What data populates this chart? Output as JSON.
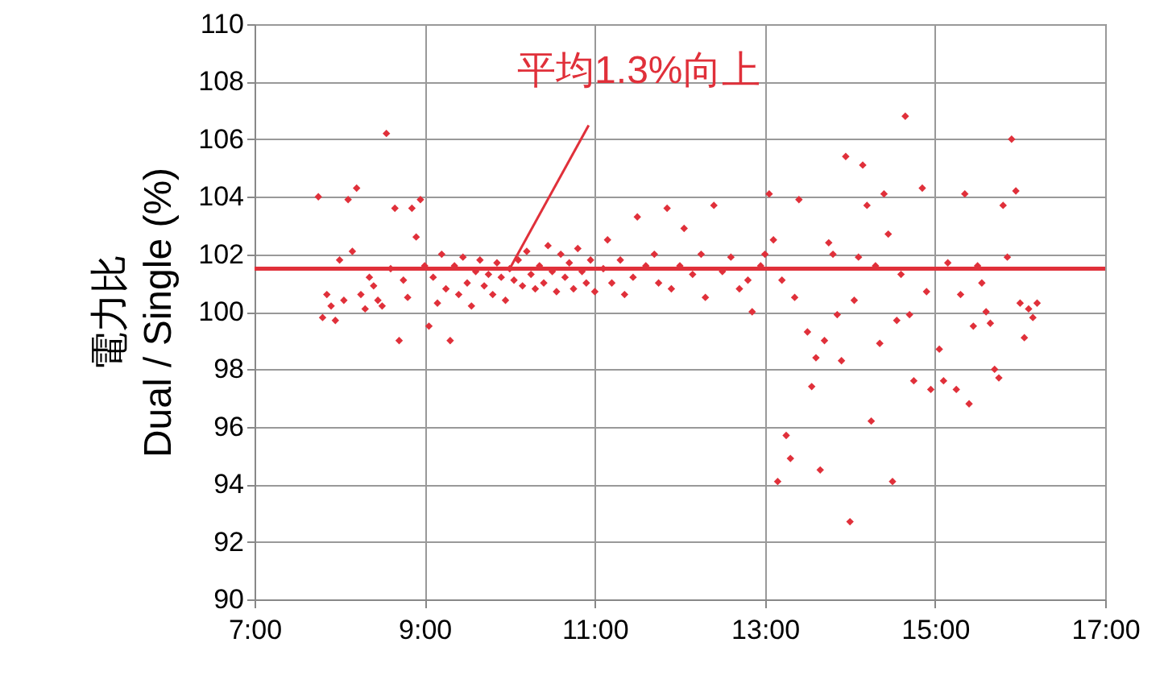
{
  "chart_data": {
    "type": "scatter",
    "ylabel": "電力比\nDual / Single (%)",
    "xlim": [
      7,
      17
    ],
    "xticks": [
      {
        "value": 7,
        "label": "7:00"
      },
      {
        "value": 9,
        "label": "9:00"
      },
      {
        "value": 11,
        "label": "11:00"
      },
      {
        "value": 13,
        "label": "13:00"
      },
      {
        "value": 15,
        "label": "15:00"
      },
      {
        "value": 17,
        "label": "17:00"
      }
    ],
    "ylim": [
      90,
      110
    ],
    "yticks": [
      90,
      92,
      94,
      96,
      98,
      100,
      102,
      104,
      106,
      108,
      110
    ],
    "grid": true,
    "marker": "diamond",
    "series": [
      {
        "color": "#e0303a",
        "x": [
          7.75,
          7.8,
          7.85,
          7.9,
          7.95,
          8.0,
          8.05,
          8.1,
          8.15,
          8.2,
          8.25,
          8.3,
          8.35,
          8.4,
          8.45,
          8.5,
          8.55,
          8.6,
          8.65,
          8.7,
          8.75,
          8.8,
          8.85,
          8.9,
          8.95,
          9.0,
          9.05,
          9.1,
          9.15,
          9.2,
          9.25,
          9.3,
          9.35,
          9.4,
          9.45,
          9.5,
          9.55,
          9.6,
          9.65,
          9.7,
          9.75,
          9.8,
          9.85,
          9.9,
          9.95,
          10.0,
          10.05,
          10.1,
          10.15,
          10.2,
          10.25,
          10.3,
          10.35,
          10.4,
          10.45,
          10.5,
          10.55,
          10.6,
          10.65,
          10.7,
          10.75,
          10.8,
          10.85,
          10.9,
          10.95,
          11.0,
          11.1,
          11.15,
          11.2,
          11.3,
          11.35,
          11.45,
          11.5,
          11.6,
          11.7,
          11.75,
          11.85,
          11.9,
          12.0,
          12.05,
          12.15,
          12.25,
          12.3,
          12.4,
          12.5,
          12.6,
          12.7,
          12.8,
          12.85,
          12.95,
          13.0,
          13.05,
          13.1,
          13.15,
          13.2,
          13.25,
          13.3,
          13.35,
          13.4,
          13.5,
          13.55,
          13.6,
          13.65,
          13.7,
          13.75,
          13.8,
          13.85,
          13.9,
          13.95,
          14.0,
          14.05,
          14.1,
          14.15,
          14.2,
          14.25,
          14.3,
          14.35,
          14.4,
          14.45,
          14.5,
          14.55,
          14.6,
          14.65,
          14.7,
          14.75,
          14.85,
          14.9,
          14.95,
          15.05,
          15.1,
          15.15,
          15.25,
          15.3,
          15.35,
          15.4,
          15.45,
          15.5,
          15.55,
          15.6,
          15.65,
          15.7,
          15.75,
          15.8,
          15.85,
          15.9,
          15.95,
          16.0,
          16.05,
          16.1,
          16.15,
          16.2
        ],
        "values": [
          104.0,
          99.8,
          100.6,
          100.2,
          99.7,
          101.8,
          100.4,
          103.9,
          102.1,
          104.3,
          100.6,
          100.1,
          101.2,
          100.9,
          100.4,
          100.2,
          106.2,
          101.5,
          103.6,
          99.0,
          101.1,
          100.5,
          103.6,
          102.6,
          103.9,
          101.6,
          99.5,
          101.2,
          100.3,
          102.0,
          100.8,
          99.0,
          101.6,
          100.6,
          101.9,
          101.0,
          100.2,
          101.4,
          101.8,
          100.9,
          101.3,
          100.6,
          101.7,
          101.2,
          100.4,
          101.5,
          101.1,
          101.8,
          100.9,
          102.1,
          101.3,
          100.8,
          101.6,
          101.0,
          102.3,
          101.4,
          100.7,
          102.0,
          101.2,
          101.7,
          100.8,
          102.2,
          101.4,
          101.0,
          101.8,
          100.7,
          101.5,
          102.5,
          101.0,
          101.8,
          100.6,
          101.2,
          103.3,
          101.6,
          102.0,
          101.0,
          103.6,
          100.8,
          101.6,
          102.9,
          101.3,
          102.0,
          100.5,
          103.7,
          101.4,
          101.9,
          100.8,
          101.1,
          100.0,
          101.6,
          102.0,
          104.1,
          102.5,
          94.1,
          101.1,
          95.7,
          94.9,
          100.5,
          103.9,
          99.3,
          97.4,
          98.4,
          94.5,
          99.0,
          102.4,
          102.0,
          99.9,
          98.3,
          105.4,
          92.7,
          100.4,
          101.9,
          105.1,
          103.7,
          96.2,
          101.6,
          98.9,
          104.1,
          102.7,
          94.1,
          99.7,
          101.3,
          106.8,
          99.9,
          97.6,
          104.3,
          100.7,
          97.3,
          98.7,
          97.6,
          101.7,
          97.3,
          100.6,
          104.1,
          96.8,
          99.5,
          101.6,
          101.0,
          100.0,
          99.6,
          98.0,
          97.7,
          103.7,
          101.9,
          106.0,
          104.2,
          100.3,
          99.1,
          100.1,
          99.8,
          100.3
        ]
      }
    ],
    "ref_lines": [
      {
        "axis": "y",
        "value": 101.5,
        "color": "#e0303a"
      }
    ],
    "annotations": [
      {
        "text": "平均1.3%向上",
        "x": 10,
        "y": 101.5
      }
    ]
  }
}
